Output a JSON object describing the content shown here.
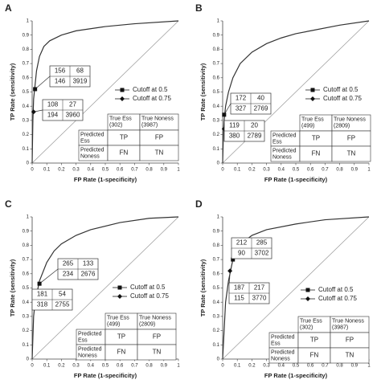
{
  "chart_data": [
    {
      "type": "line",
      "panel_label": "A",
      "xlabel": "FP Rate (1-specificity)",
      "ylabel": "TP Rate (sensitivity)",
      "xlim": [
        0,
        1
      ],
      "ylim": [
        0,
        1
      ],
      "xticks": [
        0,
        0.1,
        0.2,
        0.3,
        0.4,
        0.5,
        0.6,
        0.7,
        0.8,
        0.9,
        1
      ],
      "yticks": [
        0,
        0.1,
        0.2,
        0.3,
        0.4,
        0.5,
        0.6,
        0.7,
        0.8,
        0.9,
        1
      ],
      "curve": {
        "color": "#333333",
        "x": [
          0,
          0.005,
          0.01,
          0.02,
          0.03,
          0.05,
          0.08,
          0.12,
          0.2,
          0.3,
          0.5,
          0.7,
          1
        ],
        "y": [
          0,
          0.3,
          0.45,
          0.55,
          0.65,
          0.75,
          0.82,
          0.86,
          0.9,
          0.93,
          0.96,
          0.98,
          1
        ]
      },
      "cutoffs": [
        {
          "name": "Cutoff at 0.5",
          "marker": "square",
          "x": 0.02,
          "y": 0.52,
          "matrix": [
            [
              156,
              68
            ],
            [
              146,
              3919
            ]
          ]
        },
        {
          "name": "Cutoff at 0.75",
          "marker": "diamond",
          "x": 0.01,
          "y": 0.36,
          "matrix": [
            [
              108,
              27
            ],
            [
              194,
              3960
            ]
          ]
        }
      ],
      "table": {
        "col_headers": [
          [
            "True Ess",
            "(302)"
          ],
          [
            "True Noness",
            "(3987)"
          ]
        ],
        "rows": [
          {
            "label": [
              "Predicted",
              "Ess"
            ],
            "cells": [
              "TP",
              "FP"
            ]
          },
          {
            "label": [
              "Predicted",
              "Noness"
            ],
            "cells": [
              "FN",
              "TN"
            ]
          }
        ]
      }
    },
    {
      "type": "line",
      "panel_label": "B",
      "xlabel": "FP Rate (1-specificity)",
      "ylabel": "TP Rate (sensitivity)",
      "xlim": [
        0,
        1
      ],
      "ylim": [
        0,
        1
      ],
      "xticks": [
        0,
        0.1,
        0.2,
        0.3,
        0.4,
        0.5,
        0.6,
        0.7,
        0.8,
        0.9,
        1
      ],
      "yticks": [
        0,
        0.1,
        0.2,
        0.3,
        0.4,
        0.5,
        0.6,
        0.7,
        0.8,
        0.9,
        1
      ],
      "curve": {
        "color": "#333333",
        "x": [
          0,
          0.005,
          0.01,
          0.02,
          0.04,
          0.07,
          0.12,
          0.2,
          0.3,
          0.4,
          0.5,
          0.6,
          0.8,
          1
        ],
        "y": [
          0,
          0.2,
          0.3,
          0.4,
          0.5,
          0.6,
          0.7,
          0.78,
          0.84,
          0.88,
          0.91,
          0.93,
          0.97,
          1
        ]
      },
      "cutoffs": [
        {
          "name": "Cutoff at 0.5",
          "marker": "square",
          "x": 0.01,
          "y": 0.34,
          "matrix": [
            [
              172,
              40
            ],
            [
              327,
              2769
            ]
          ]
        },
        {
          "name": "Cutoff at 0.75",
          "marker": "diamond",
          "x": 0.01,
          "y": 0.24,
          "matrix": [
            [
              119,
              20
            ],
            [
              380,
              2789
            ]
          ]
        }
      ],
      "table": {
        "col_headers": [
          [
            "True Ess",
            "(499)"
          ],
          [
            "True Noness",
            "(2809)"
          ]
        ],
        "rows": [
          {
            "label": [
              "Predicted",
              "Ess"
            ],
            "cells": [
              "TP",
              "FP"
            ]
          },
          {
            "label": [
              "Predicted",
              "Noness"
            ],
            "cells": [
              "FN",
              "TN"
            ]
          }
        ]
      }
    },
    {
      "type": "line",
      "panel_label": "C",
      "xlabel": "FP Rate (1-specificity)",
      "ylabel": "TP Rate (sensitivity)",
      "xlim": [
        0,
        1
      ],
      "ylim": [
        0,
        1
      ],
      "xticks": [
        0,
        0.1,
        0.2,
        0.3,
        0.4,
        0.5,
        0.6,
        0.7,
        0.8,
        0.9,
        1
      ],
      "yticks": [
        0,
        0.1,
        0.2,
        0.3,
        0.4,
        0.5,
        0.6,
        0.7,
        0.8,
        0.9,
        1
      ],
      "curve": {
        "color": "#333333",
        "x": [
          0,
          0.01,
          0.02,
          0.05,
          0.1,
          0.15,
          0.2,
          0.3,
          0.4,
          0.6,
          0.8,
          1
        ],
        "y": [
          0,
          0.3,
          0.4,
          0.55,
          0.68,
          0.76,
          0.81,
          0.87,
          0.91,
          0.96,
          0.99,
          1
        ]
      },
      "cutoffs": [
        {
          "name": "Cutoff at 0.5",
          "marker": "square",
          "x": 0.05,
          "y": 0.53,
          "matrix": [
            [
              265,
              133
            ],
            [
              234,
              2676
            ]
          ]
        },
        {
          "name": "Cutoff at 0.75",
          "marker": "diamond",
          "x": 0.02,
          "y": 0.36,
          "matrix": [
            [
              181,
              54
            ],
            [
              318,
              2755
            ]
          ]
        }
      ],
      "table": {
        "col_headers": [
          [
            "True Ess",
            "(499)"
          ],
          [
            "True Noness",
            "(2809)"
          ]
        ],
        "rows": [
          {
            "label": [
              "Predicted",
              "Ess"
            ],
            "cells": [
              "TP",
              "FP"
            ]
          },
          {
            "label": [
              "Predicted",
              "Noness"
            ],
            "cells": [
              "FN",
              "TN"
            ]
          }
        ]
      }
    },
    {
      "type": "line",
      "panel_label": "D",
      "xlabel": "FP Rate (1-specificity)",
      "ylabel": "TP Rate (sensitivity)",
      "xlim": [
        0,
        1
      ],
      "ylim": [
        0,
        1
      ],
      "xticks": [
        0,
        0.1,
        0.2,
        0.3,
        0.4,
        0.5,
        0.6,
        0.7,
        0.8,
        0.9,
        1
      ],
      "yticks": [
        0,
        0.1,
        0.2,
        0.3,
        0.4,
        0.5,
        0.6,
        0.7,
        0.8,
        0.9,
        1
      ],
      "curve": {
        "color": "#333333",
        "x": [
          0,
          0.02,
          0.04,
          0.07,
          0.1,
          0.15,
          0.2,
          0.3,
          0.5,
          0.7,
          1
        ],
        "y": [
          0,
          0.4,
          0.55,
          0.7,
          0.78,
          0.83,
          0.87,
          0.91,
          0.95,
          0.98,
          1
        ]
      },
      "cutoffs": [
        {
          "name": "Cutoff at 0.5",
          "marker": "square",
          "x": 0.07,
          "y": 0.7,
          "matrix": [
            [
              212,
              285
            ],
            [
              90,
              3702
            ]
          ]
        },
        {
          "name": "Cutoff at 0.75",
          "marker": "diamond",
          "x": 0.05,
          "y": 0.62,
          "matrix": [
            [
              187,
              217
            ],
            [
              115,
              3770
            ]
          ]
        }
      ],
      "table": {
        "col_headers": [
          [
            "True Ess",
            "(302)"
          ],
          [
            "True Noness",
            "(3987)"
          ]
        ],
        "rows": [
          {
            "label": [
              "Predicted",
              "Ess"
            ],
            "cells": [
              "TP",
              "FP"
            ]
          },
          {
            "label": [
              "Predicted",
              "Noness"
            ],
            "cells": [
              "FN",
              "TN"
            ]
          }
        ]
      }
    }
  ]
}
